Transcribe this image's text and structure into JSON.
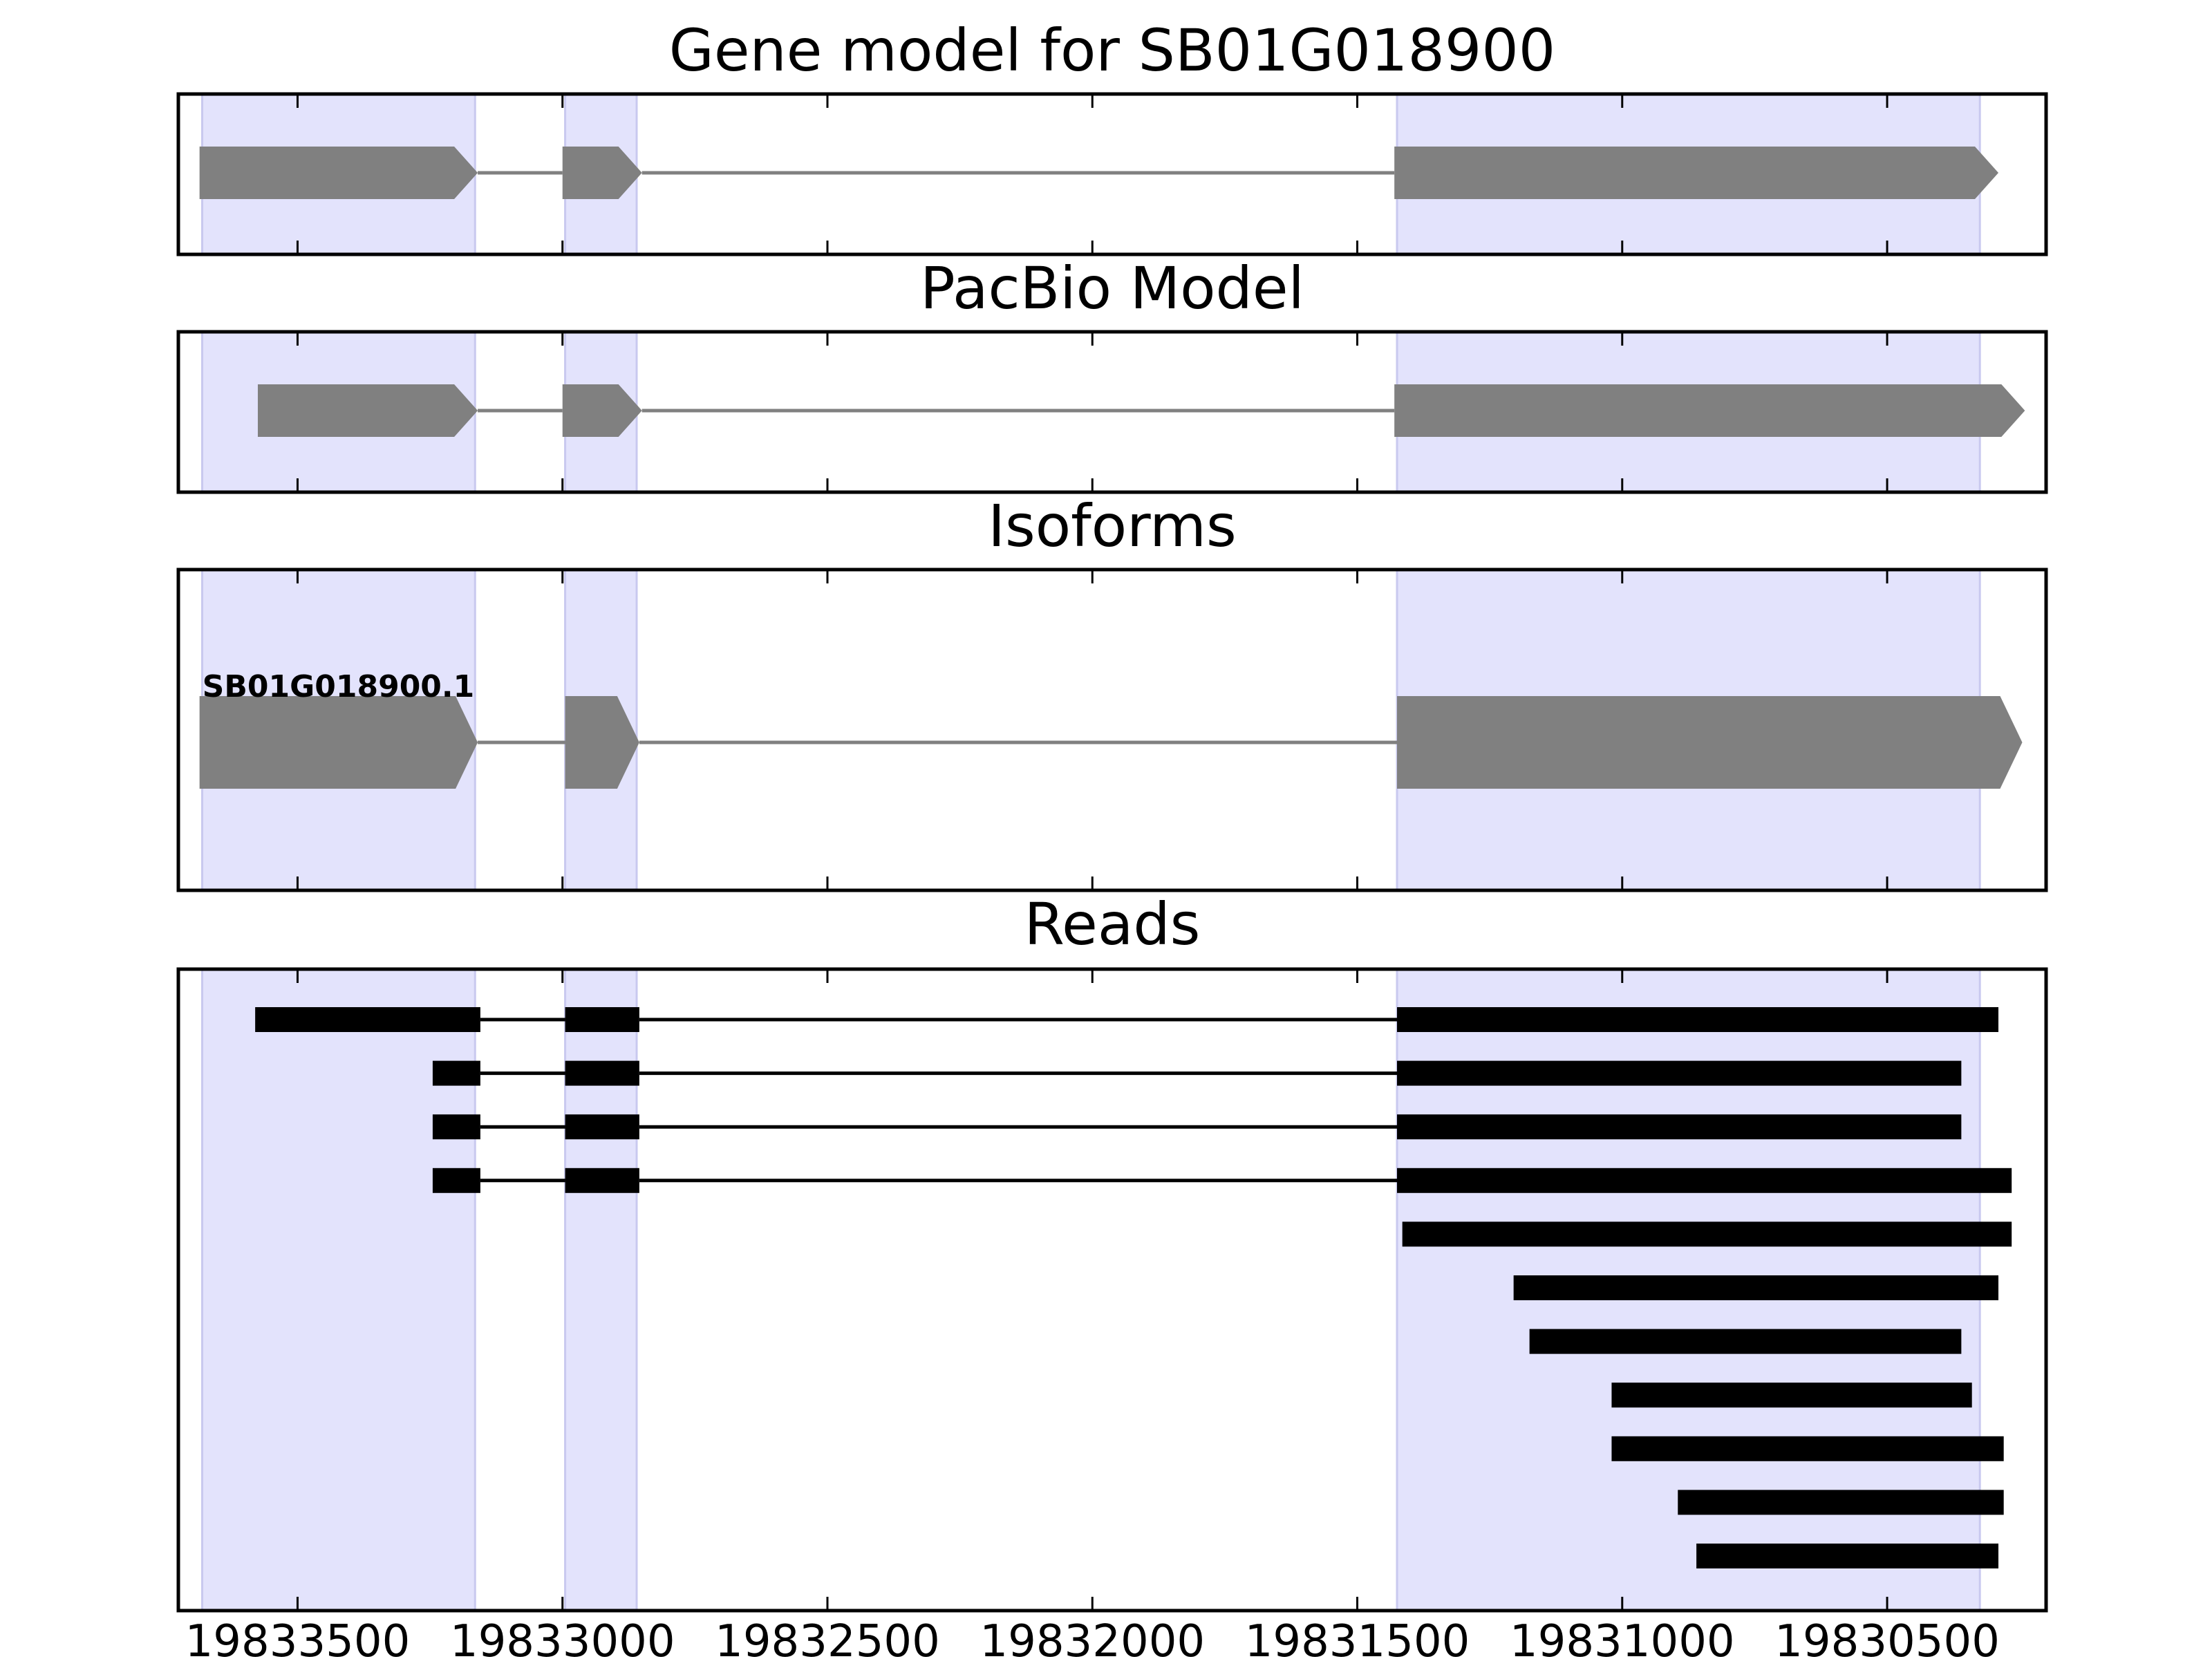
{
  "chart_data": {
    "type": "gene-structure",
    "x_axis_reversed": true,
    "xlim": [
      19833725,
      19830200
    ],
    "xticks": [
      19833500,
      19833000,
      19832500,
      19832000,
      19831500,
      19831000,
      19830500
    ],
    "xtick_labels": [
      "19833500",
      "19833000",
      "19832500",
      "19832000",
      "19831500",
      "19831000",
      "19830500"
    ],
    "highlight_regions": [
      [
        19833680,
        19833165
      ],
      [
        19832995,
        19832860
      ],
      [
        19831425,
        19830325
      ]
    ],
    "colors": {
      "highlight": "#e3e3fc",
      "highlight_edge": "#c9c9ef",
      "feature": "#808080",
      "read": "#000000",
      "frame": "#000000"
    },
    "panels": [
      {
        "title": "Gene model for SB01G018900",
        "exons": [
          [
            19833685,
            19833160
          ],
          [
            19833000,
            19832850
          ],
          [
            19831430,
            19830290
          ]
        ],
        "strand": "-"
      },
      {
        "title": "PacBio Model",
        "exons": [
          [
            19833575,
            19833160
          ],
          [
            19833000,
            19832850
          ],
          [
            19831430,
            19830240
          ]
        ],
        "strand": "-"
      },
      {
        "title": "Isoforms",
        "isoforms": [
          {
            "label": "SB01G018900.1",
            "exons": [
              [
                19833685,
                19833160
              ],
              [
                19832995,
                19832855
              ],
              [
                19831425,
                19830245
              ]
            ],
            "strand": "-"
          }
        ]
      },
      {
        "title": "Reads",
        "reads": [
          [
            [
              19833580,
              19833155
            ],
            [
              19832995,
              19832855
            ],
            [
              19831425,
              19830290
            ]
          ],
          [
            [
              19833245,
              19833155
            ],
            [
              19832995,
              19832855
            ],
            [
              19831425,
              19830360
            ]
          ],
          [
            [
              19833245,
              19833155
            ],
            [
              19832995,
              19832855
            ],
            [
              19831425,
              19830360
            ]
          ],
          [
            [
              19833245,
              19833155
            ],
            [
              19832995,
              19832855
            ],
            [
              19831425,
              19830265
            ]
          ],
          [
            [
              19831415,
              19830265
            ]
          ],
          [
            [
              19831205,
              19830290
            ]
          ],
          [
            [
              19831175,
              19830360
            ]
          ],
          [
            [
              19831020,
              19830340
            ]
          ],
          [
            [
              19831020,
              19830280
            ]
          ],
          [
            [
              19830895,
              19830280
            ]
          ],
          [
            [
              19830860,
              19830290
            ]
          ]
        ]
      }
    ]
  }
}
